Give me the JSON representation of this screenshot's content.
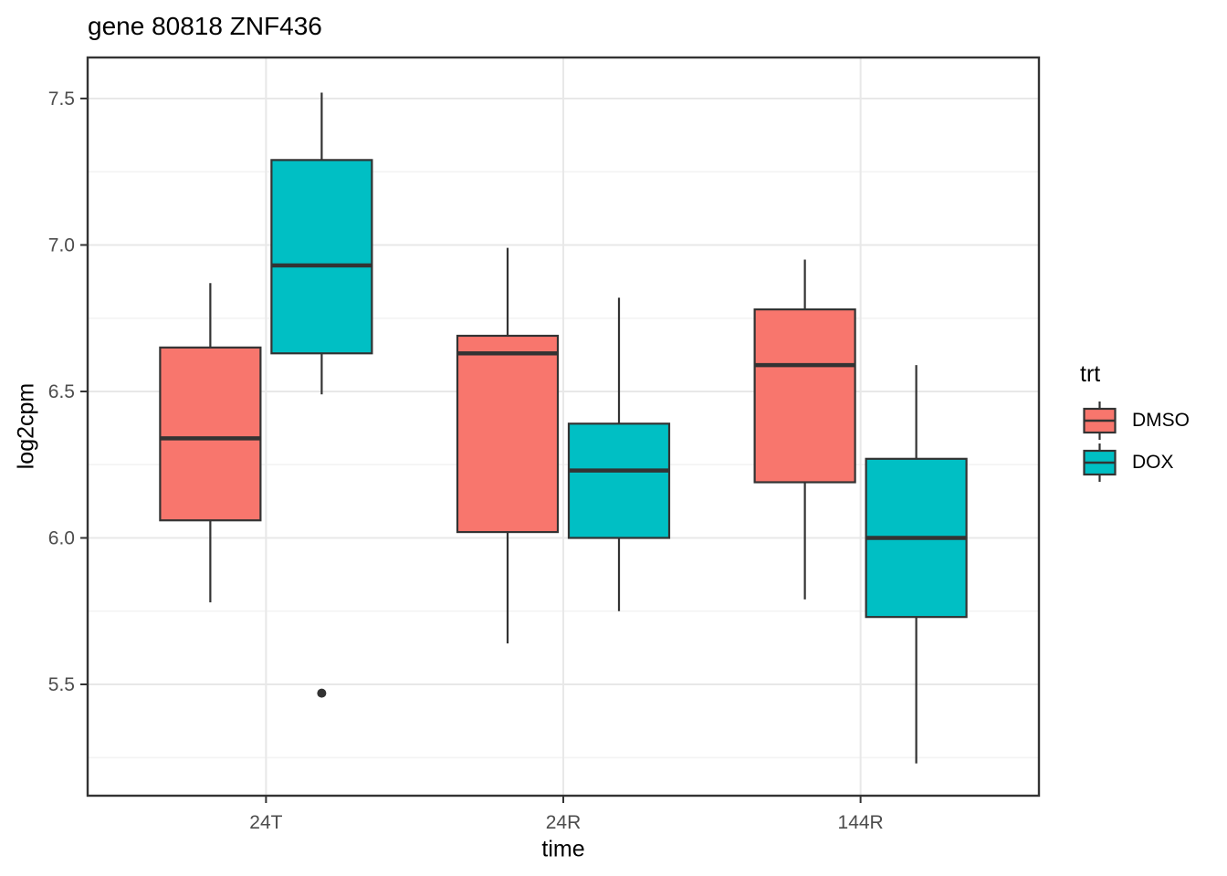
{
  "chart_data": {
    "type": "boxplot",
    "title": "gene 80818 ZNF436",
    "xlabel": "time",
    "ylabel": "log2cpm",
    "categories": [
      "24T",
      "24R",
      "144R"
    ],
    "ylim": [
      5.12,
      7.64
    ],
    "y_ticks": [
      "5.5",
      "6.0",
      "6.5",
      "7.0",
      "7.5"
    ],
    "y_minor_ticks": [
      5.25,
      5.75,
      6.25,
      6.75,
      7.25
    ],
    "grid": "horizontal major+minor, vertical major at categories",
    "legend": {
      "title": "trt",
      "position": "right",
      "entries": [
        {
          "label": "DMSO",
          "color": "#F8766D"
        },
        {
          "label": "DOX",
          "color": "#00BFC4"
        }
      ]
    },
    "series": [
      {
        "name": "DMSO",
        "color": "#F8766D",
        "boxes": [
          {
            "category": "24T",
            "whisker_low": 5.78,
            "q1": 6.06,
            "median": 6.34,
            "q3": 6.65,
            "whisker_high": 6.87,
            "outliers": []
          },
          {
            "category": "24R",
            "whisker_low": 5.64,
            "q1": 6.02,
            "median": 6.63,
            "q3": 6.69,
            "whisker_high": 6.99,
            "outliers": []
          },
          {
            "category": "144R",
            "whisker_low": 5.79,
            "q1": 6.19,
            "median": 6.59,
            "q3": 6.78,
            "whisker_high": 6.95,
            "outliers": []
          }
        ]
      },
      {
        "name": "DOX",
        "color": "#00BFC4",
        "boxes": [
          {
            "category": "24T",
            "whisker_low": 6.49,
            "q1": 6.63,
            "median": 6.93,
            "q3": 7.29,
            "whisker_high": 7.52,
            "outliers": [
              5.47
            ]
          },
          {
            "category": "24R",
            "whisker_low": 5.75,
            "q1": 6.0,
            "median": 6.23,
            "q3": 6.39,
            "whisker_high": 6.82,
            "outliers": []
          },
          {
            "category": "144R",
            "whisker_low": 5.23,
            "q1": 5.73,
            "median": 6.0,
            "q3": 6.27,
            "whisker_high": 6.59,
            "outliers": []
          }
        ]
      }
    ],
    "colors": {
      "stroke": "#333333",
      "grid_major": "#E8E8E8",
      "grid_minor": "#F3F3F3",
      "panel_border": "#333333",
      "tick_text": "#4D4D4D",
      "outlier": "#333333",
      "background": "#FFFFFF"
    }
  }
}
